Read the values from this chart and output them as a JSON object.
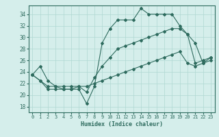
{
  "title": "",
  "xlabel": "Humidex (Indice chaleur)",
  "x": [
    0,
    1,
    2,
    3,
    4,
    5,
    6,
    7,
    8,
    9,
    10,
    11,
    12,
    13,
    14,
    15,
    16,
    17,
    18,
    19,
    20,
    21,
    22,
    23
  ],
  "line1": [
    23.5,
    25.0,
    22.5,
    21.5,
    21.0,
    21.0,
    21.0,
    18.5,
    21.5,
    29.0,
    31.5,
    33.0,
    33.0,
    33.0,
    35.0,
    34.0,
    34.0,
    34.0,
    34.0,
    32.0,
    30.5,
    29.0,
    25.5,
    26.0
  ],
  "line2": [
    23.5,
    22.5,
    21.0,
    21.0,
    21.0,
    21.0,
    21.5,
    20.5,
    23.0,
    25.0,
    26.5,
    28.0,
    28.5,
    29.0,
    29.5,
    30.0,
    30.5,
    31.0,
    31.5,
    31.5,
    30.5,
    25.5,
    26.0,
    26.5
  ],
  "line3": [
    23.5,
    22.5,
    21.5,
    21.5,
    21.5,
    21.5,
    21.5,
    21.5,
    22.0,
    22.5,
    23.0,
    23.5,
    24.0,
    24.5,
    25.0,
    25.5,
    26.0,
    26.5,
    27.0,
    27.5,
    25.5,
    25.0,
    25.5,
    26.5
  ],
  "line_color": "#2e6b5e",
  "bg_color": "#d5eeeb",
  "grid_color": "#afd8d2",
  "axis_color": "#2e6b5e",
  "ylim": [
    17,
    35.5
  ],
  "yticks": [
    18,
    20,
    22,
    24,
    26,
    28,
    30,
    32,
    34
  ],
  "xlim": [
    -0.5,
    23.5
  ],
  "xticks": [
    0,
    1,
    2,
    3,
    4,
    5,
    6,
    7,
    8,
    9,
    10,
    11,
    12,
    13,
    14,
    15,
    16,
    17,
    18,
    19,
    20,
    21,
    22,
    23
  ]
}
